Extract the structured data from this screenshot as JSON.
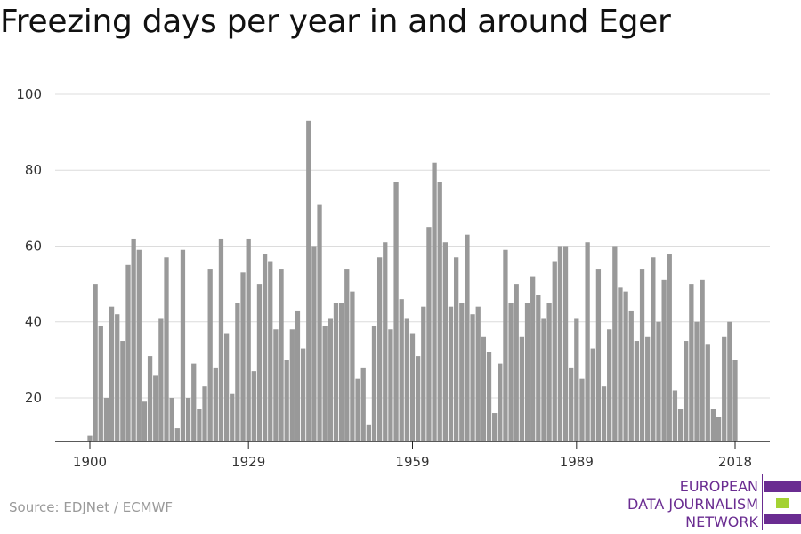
{
  "title": "Freezing days per year in and around Eger",
  "source": "Source: EDJNet / ECMWF",
  "logo": {
    "lines": [
      "EUROPEAN",
      "DATA JOURNALISM",
      "NETWORK"
    ],
    "colors": {
      "purple": "#6a2c91",
      "green": "#a4d233"
    }
  },
  "chart_data": {
    "type": "bar",
    "bar_color": "#999999",
    "grid": true,
    "ylim": [
      8.5,
      100
    ],
    "yticks": [
      20,
      40,
      60,
      80,
      100
    ],
    "xticks": [
      1900,
      1929,
      1959,
      1989,
      2018
    ],
    "x": [
      1900,
      1901,
      1902,
      1903,
      1904,
      1905,
      1906,
      1907,
      1908,
      1909,
      1910,
      1911,
      1912,
      1913,
      1914,
      1915,
      1916,
      1917,
      1918,
      1919,
      1920,
      1921,
      1922,
      1923,
      1924,
      1925,
      1926,
      1927,
      1928,
      1929,
      1930,
      1931,
      1932,
      1933,
      1934,
      1935,
      1936,
      1937,
      1938,
      1939,
      1940,
      1941,
      1942,
      1943,
      1944,
      1945,
      1946,
      1947,
      1948,
      1949,
      1950,
      1951,
      1952,
      1953,
      1954,
      1955,
      1956,
      1957,
      1958,
      1959,
      1960,
      1961,
      1962,
      1963,
      1964,
      1965,
      1966,
      1967,
      1968,
      1969,
      1970,
      1971,
      1972,
      1973,
      1974,
      1975,
      1976,
      1977,
      1978,
      1979,
      1980,
      1981,
      1982,
      1983,
      1984,
      1985,
      1986,
      1987,
      1988,
      1989,
      1990,
      1991,
      1992,
      1993,
      1994,
      1995,
      1996,
      1997,
      1998,
      1999,
      2000,
      2001,
      2002,
      2003,
      2004,
      2005,
      2006,
      2007,
      2008,
      2009,
      2010,
      2011,
      2012,
      2013,
      2014,
      2015,
      2016,
      2017,
      2018
    ],
    "values": [
      10,
      50,
      39,
      20,
      44,
      42,
      35,
      55,
      62,
      59,
      19,
      31,
      26,
      41,
      57,
      20,
      12,
      59,
      20,
      29,
      17,
      23,
      54,
      28,
      62,
      37,
      21,
      45,
      53,
      62,
      27,
      50,
      58,
      56,
      38,
      54,
      30,
      38,
      43,
      33,
      93,
      60,
      71,
      39,
      41,
      45,
      45,
      54,
      48,
      25,
      28,
      13,
      39,
      57,
      61,
      38,
      77,
      46,
      41,
      37,
      31,
      44,
      65,
      82,
      77,
      61,
      44,
      57,
      45,
      63,
      42,
      44,
      36,
      32,
      16,
      29,
      59,
      45,
      50,
      36,
      45,
      52,
      47,
      41,
      45,
      56,
      60,
      60,
      28,
      41,
      25,
      61,
      33,
      54,
      23,
      38,
      60,
      49,
      48,
      43,
      35,
      54,
      36,
      57,
      40,
      51,
      58,
      22,
      17,
      35,
      50,
      40,
      51,
      34,
      17,
      15,
      36,
      40,
      30
    ]
  }
}
